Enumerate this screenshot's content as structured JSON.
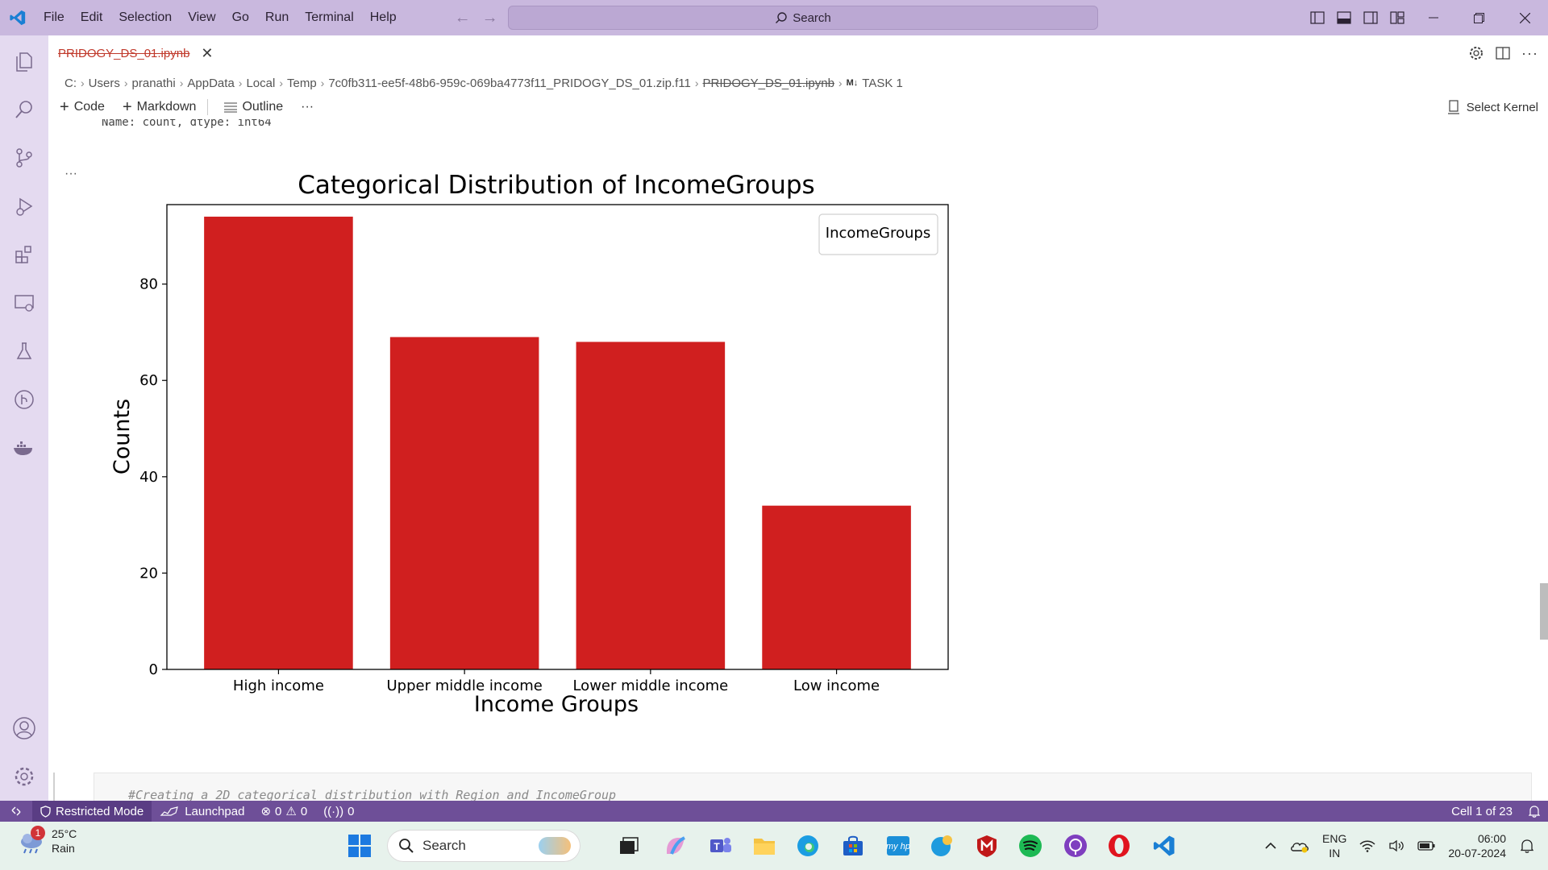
{
  "menu": [
    "File",
    "Edit",
    "Selection",
    "View",
    "Go",
    "Run",
    "Terminal",
    "Help"
  ],
  "command_center": {
    "label": "Search"
  },
  "tab": {
    "label": "PRIDOGY_DS_01.ipynb"
  },
  "breadcrumb": [
    "C:",
    "Users",
    "pranathi",
    "AppData",
    "Local",
    "Temp",
    "7c0fb311-ee5f-48b6-959c-069ba4773f11_PRIDOGY_DS_01.zip.f11",
    "PRIDOGY_DS_01.ipynb",
    "TASK 1"
  ],
  "breadcrumb_md_badge": "M↓",
  "toolbar": {
    "code": "Code",
    "markdown": "Markdown",
    "outline": "Outline",
    "more": "···",
    "select_kernel": "Select Kernel"
  },
  "output_prev": "Name: count, dtype: int64",
  "cell_dots": "···",
  "chart_data": {
    "type": "bar",
    "title": "Categorical Distribution of IncomeGroups",
    "xlabel": "Income Groups",
    "ylabel": "Counts",
    "categories": [
      "High income",
      "Upper middle income",
      "Lower middle income",
      "Low income"
    ],
    "values": [
      94,
      69,
      68,
      34
    ],
    "ylim": [
      0,
      96.5
    ],
    "yticks": [
      0,
      20,
      40,
      60,
      80
    ],
    "ytick_labels": [
      "0",
      "20",
      "40",
      "60",
      "80"
    ],
    "bar_color": "#d01f1f",
    "legend": {
      "title": "IncomeGroups",
      "placement": "top-right"
    },
    "grid": false
  },
  "next_cell": {
    "code": "#Creating a 2D categorical distribution with Region and IncomeGroup"
  },
  "statusbar": {
    "restricted": "Restricted Mode",
    "launchpad": "Launchpad",
    "errors": "0",
    "warnings": "0",
    "ports": "0",
    "cell_position": "Cell 1 of 23"
  },
  "taskbar": {
    "weather_temp": "25°C",
    "weather_desc": "Rain",
    "weather_badge": "1",
    "search": "Search",
    "lang_top": "ENG",
    "lang_bottom": "IN",
    "time": "06:00",
    "date": "20-07-2024"
  },
  "colors": {
    "titlebar": "#c9b8de",
    "activitybar": "#e4daf0",
    "statusbar": "#6e4f98",
    "accent_bar": "#d01f1f"
  }
}
